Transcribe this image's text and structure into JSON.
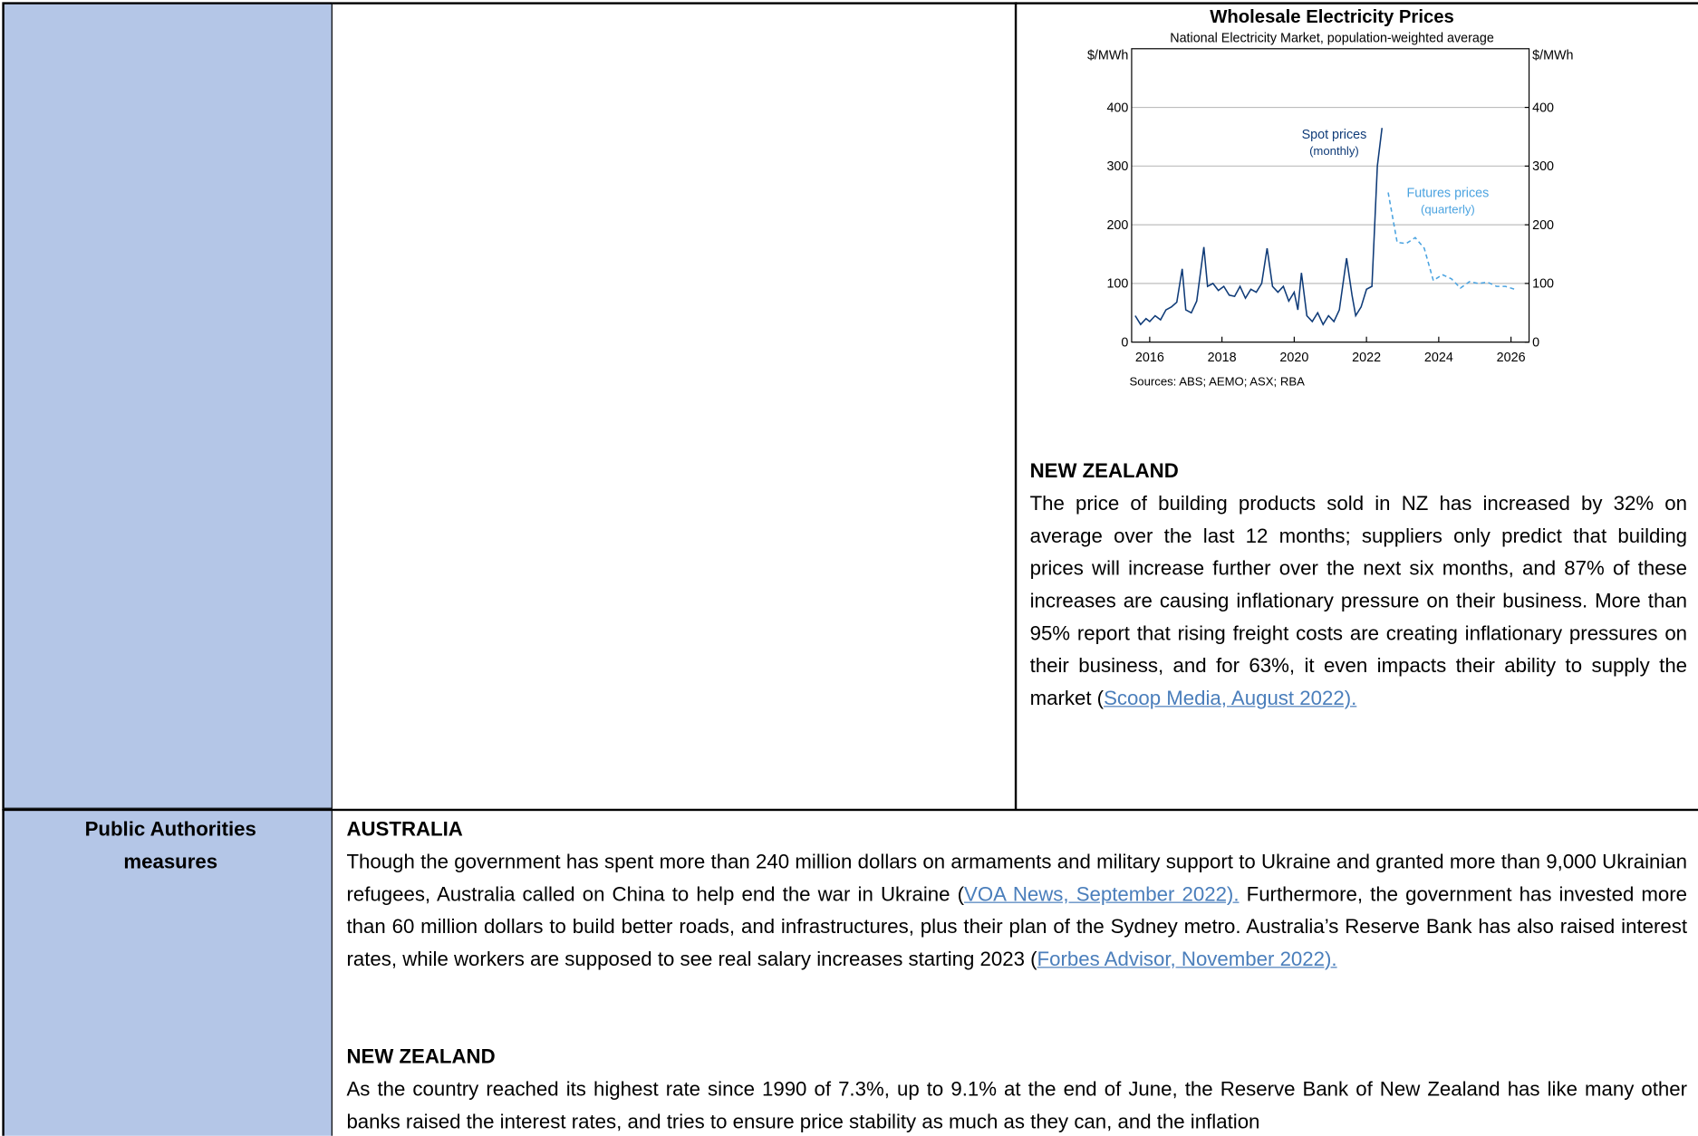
{
  "chart_data": {
    "type": "line",
    "title": "Wholesale Electricity Prices",
    "subtitle": "National Electricity Market, population-weighted average",
    "y_label": "$/MWh",
    "y2_label": "$/MWh",
    "source": "Sources: ABS; AEMO; ASX; RBA",
    "xlim": [
      2015.5,
      2026.5
    ],
    "xticks": [
      2016,
      2018,
      2020,
      2022,
      2024,
      2026
    ],
    "ylim": [
      0,
      500
    ],
    "yticks": [
      0,
      100,
      200,
      300,
      400
    ],
    "y2lim": [
      0,
      500
    ],
    "y2ticks": [
      0,
      100,
      200,
      300,
      400
    ],
    "grid": true,
    "series": [
      {
        "name": "Spot prices",
        "note": "(monthly)",
        "color": "#0f3b78",
        "dashed": false,
        "x": [
          2015.6,
          2015.75,
          2015.9,
          2016.0,
          2016.15,
          2016.3,
          2016.45,
          2016.6,
          2016.75,
          2016.9,
          2017.0,
          2017.15,
          2017.3,
          2017.5,
          2017.6,
          2017.75,
          2017.9,
          2018.05,
          2018.2,
          2018.35,
          2018.5,
          2018.65,
          2018.8,
          2018.95,
          2019.1,
          2019.25,
          2019.4,
          2019.55,
          2019.7,
          2019.85,
          2020.0,
          2020.1,
          2020.2,
          2020.35,
          2020.5,
          2020.65,
          2020.8,
          2020.95,
          2021.1,
          2021.25,
          2021.45,
          2021.6,
          2021.7,
          2021.85,
          2022.0,
          2022.15,
          2022.3,
          2022.43
        ],
        "values": [
          45,
          30,
          40,
          35,
          45,
          38,
          55,
          60,
          68,
          125,
          55,
          50,
          70,
          162,
          95,
          100,
          88,
          95,
          80,
          78,
          95,
          75,
          90,
          85,
          100,
          160,
          95,
          85,
          95,
          70,
          85,
          55,
          118,
          45,
          35,
          50,
          30,
          45,
          35,
          55,
          143,
          80,
          45,
          60,
          90,
          95,
          300,
          365
        ]
      },
      {
        "name": "Futures prices",
        "note": "(quarterly)",
        "color": "#4ba3e0",
        "dashed": true,
        "x": [
          2022.6,
          2022.85,
          2023.1,
          2023.35,
          2023.6,
          2023.85,
          2024.1,
          2024.35,
          2024.6,
          2024.85,
          2025.1,
          2025.35,
          2025.6,
          2025.85,
          2026.1
        ],
        "values": [
          255,
          170,
          168,
          178,
          160,
          105,
          115,
          108,
          92,
          103,
          100,
          102,
          95,
          95,
          90
        ]
      }
    ]
  },
  "document": {
    "nz_building": {
      "heading": "NEW ZEALAND",
      "text": "The price of building products sold in NZ has increased by 32% on average over the last 12 months; suppliers only predict that building prices will increase further over the next six months, and 87% of these increases are causing inflationary pressure on their business. More than 95% report that rising freight costs are creating inflationary pressures on their business, and for 63%, it even impacts their ability to supply the market (",
      "link": "Scoop Media, August 2022)."
    },
    "row_label": "Public Authorities measures",
    "australia": {
      "heading": "AUSTRALIA",
      "text1": "Though the government has spent more than 240 million dollars on armaments and military support to Ukraine and granted more than 9,000 Ukrainian refugees, Australia called on China to help end the war in Ukraine (",
      "link1": "VOA News, September 2022).",
      "text2": " Furthermore, the government has invested more than 60 million dollars to build better roads, and infrastructures, plus their plan of the Sydney metro. Australia’s Reserve Bank has also raised interest rates, while workers are supposed to see real salary increases starting 2023 (",
      "link2": "Forbes Advisor, November 2022)."
    },
    "new_zealand": {
      "heading": "NEW ZEALAND",
      "text": "As the country reached its highest rate since 1990 of 7.3%, up to 9.1% at the end of June, the Reserve Bank of New Zealand has like many other banks raised the interest rates, and tries to ensure price stability as much as they can, and the inflation"
    }
  }
}
